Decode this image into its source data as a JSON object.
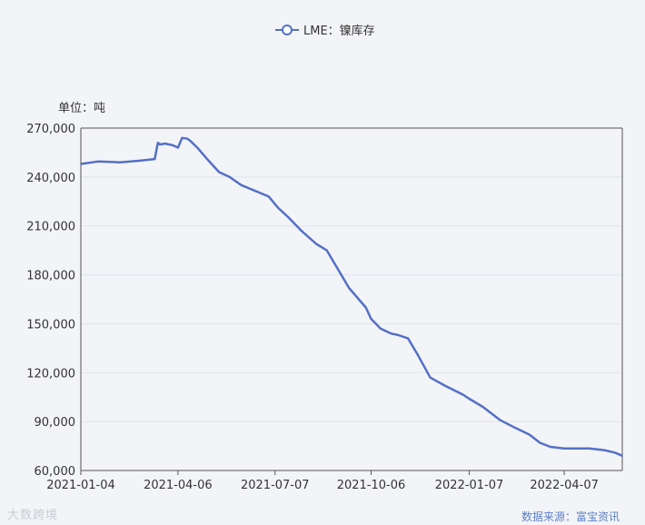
{
  "chart_data": {
    "type": "line",
    "legend": {
      "label": "LME：镍库存",
      "position": "top-center"
    },
    "unit_label": "单位：吨",
    "ylim": [
      60000,
      270000
    ],
    "y_ticks": [
      "270,000",
      "240,000",
      "210,000",
      "180,000",
      "150,000",
      "120,000",
      "90,000",
      "60,000"
    ],
    "y_tick_values": [
      270000,
      240000,
      210000,
      180000,
      150000,
      120000,
      90000,
      60000
    ],
    "x_ticks": [
      "2021-01-04",
      "2021-04-06",
      "2021-07-07",
      "2021-10-06",
      "2022-01-07",
      "2022-04-07"
    ],
    "x_range": [
      "2021-01-04",
      "2022-06-01"
    ],
    "grid": true,
    "series": [
      {
        "name": "LME：镍库存",
        "color": "#5470c6",
        "x": [
          "2021-01-04",
          "2021-01-20",
          "2021-02-10",
          "2021-03-01",
          "2021-03-15",
          "2021-03-18",
          "2021-03-20",
          "2021-03-25",
          "2021-04-01",
          "2021-04-06",
          "2021-04-10",
          "2021-04-15",
          "2021-04-18",
          "2021-04-25",
          "2021-05-05",
          "2021-05-15",
          "2021-05-25",
          "2021-06-05",
          "2021-06-20",
          "2021-07-01",
          "2021-07-10",
          "2021-07-20",
          "2021-08-01",
          "2021-08-15",
          "2021-08-25",
          "2021-09-05",
          "2021-09-15",
          "2021-10-01",
          "2021-10-06",
          "2021-10-15",
          "2021-10-25",
          "2021-11-01",
          "2021-11-10",
          "2021-11-20",
          "2021-12-01",
          "2021-12-15",
          "2022-01-01",
          "2022-01-07",
          "2022-01-20",
          "2022-02-05",
          "2022-02-20",
          "2022-03-05",
          "2022-03-15",
          "2022-03-25",
          "2022-04-07",
          "2022-04-20",
          "2022-05-01",
          "2022-05-15",
          "2022-05-25",
          "2022-06-01"
        ],
        "values": [
          248000,
          249500,
          249000,
          250000,
          251000,
          261000,
          260000,
          260500,
          259500,
          258000,
          264000,
          263500,
          262000,
          257500,
          250000,
          243000,
          240000,
          235000,
          231000,
          228000,
          221000,
          215000,
          207000,
          199000,
          195000,
          183000,
          172000,
          160000,
          153000,
          147000,
          144000,
          143000,
          141000,
          130000,
          117000,
          112000,
          106500,
          104000,
          99000,
          91000,
          86000,
          82000,
          77000,
          74500,
          73500,
          73500,
          73500,
          72500,
          71000,
          69000
        ]
      }
    ]
  },
  "footer": {
    "watermark": "大数跨境",
    "source": "数据来源：富宝资讯"
  }
}
